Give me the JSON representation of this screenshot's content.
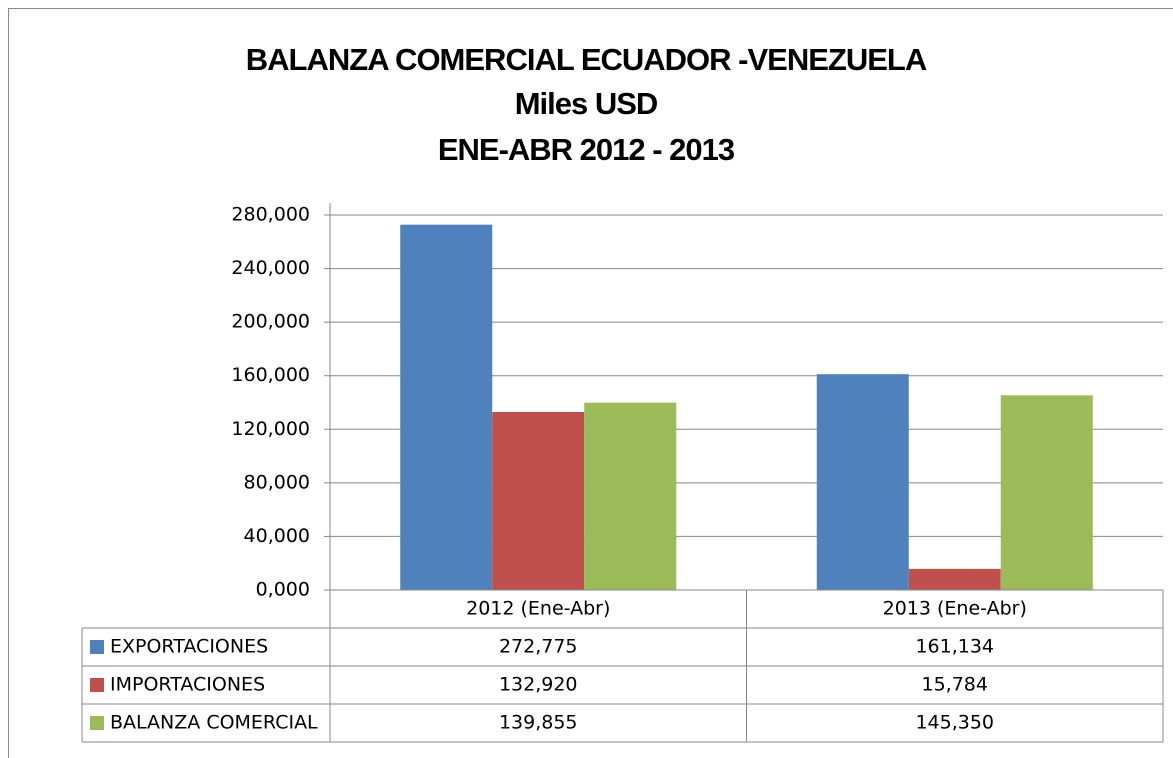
{
  "chart_data": {
    "type": "bar",
    "title_lines": [
      "BALANZA COMERCIAL ECUADOR -VENEZUELA",
      "Miles USD",
      "ENE-ABR 2012 - 2013"
    ],
    "categories": [
      "2012 (Ene-Abr)",
      "2013 (Ene-Abr)"
    ],
    "series": [
      {
        "name": "EXPORTACIONES",
        "color": "#4f81bd",
        "values": [
          272.775,
          161.134
        ],
        "value_labels": [
          "272,775",
          "161,134"
        ]
      },
      {
        "name": "IMPORTACIONES",
        "color": "#c0504d",
        "values": [
          132.92,
          15.784
        ],
        "value_labels": [
          "132,920",
          "15,784"
        ]
      },
      {
        "name": "BALANZA COMERCIAL",
        "color": "#9bbb59",
        "values": [
          139.855,
          145.35
        ],
        "value_labels": [
          "139,855",
          "145,350"
        ]
      }
    ],
    "ylim": [
      0,
      280
    ],
    "yticks": [
      {
        "value": 0,
        "label": "0,000"
      },
      {
        "value": 40,
        "label": "40,000"
      },
      {
        "value": 80,
        "label": "80,000"
      },
      {
        "value": 120,
        "label": "120,000"
      },
      {
        "value": 160,
        "label": "160,000"
      },
      {
        "value": 200,
        "label": "200,000"
      },
      {
        "value": 240,
        "label": "240,000"
      },
      {
        "value": 280,
        "label": "280,000"
      }
    ],
    "grid": true
  }
}
